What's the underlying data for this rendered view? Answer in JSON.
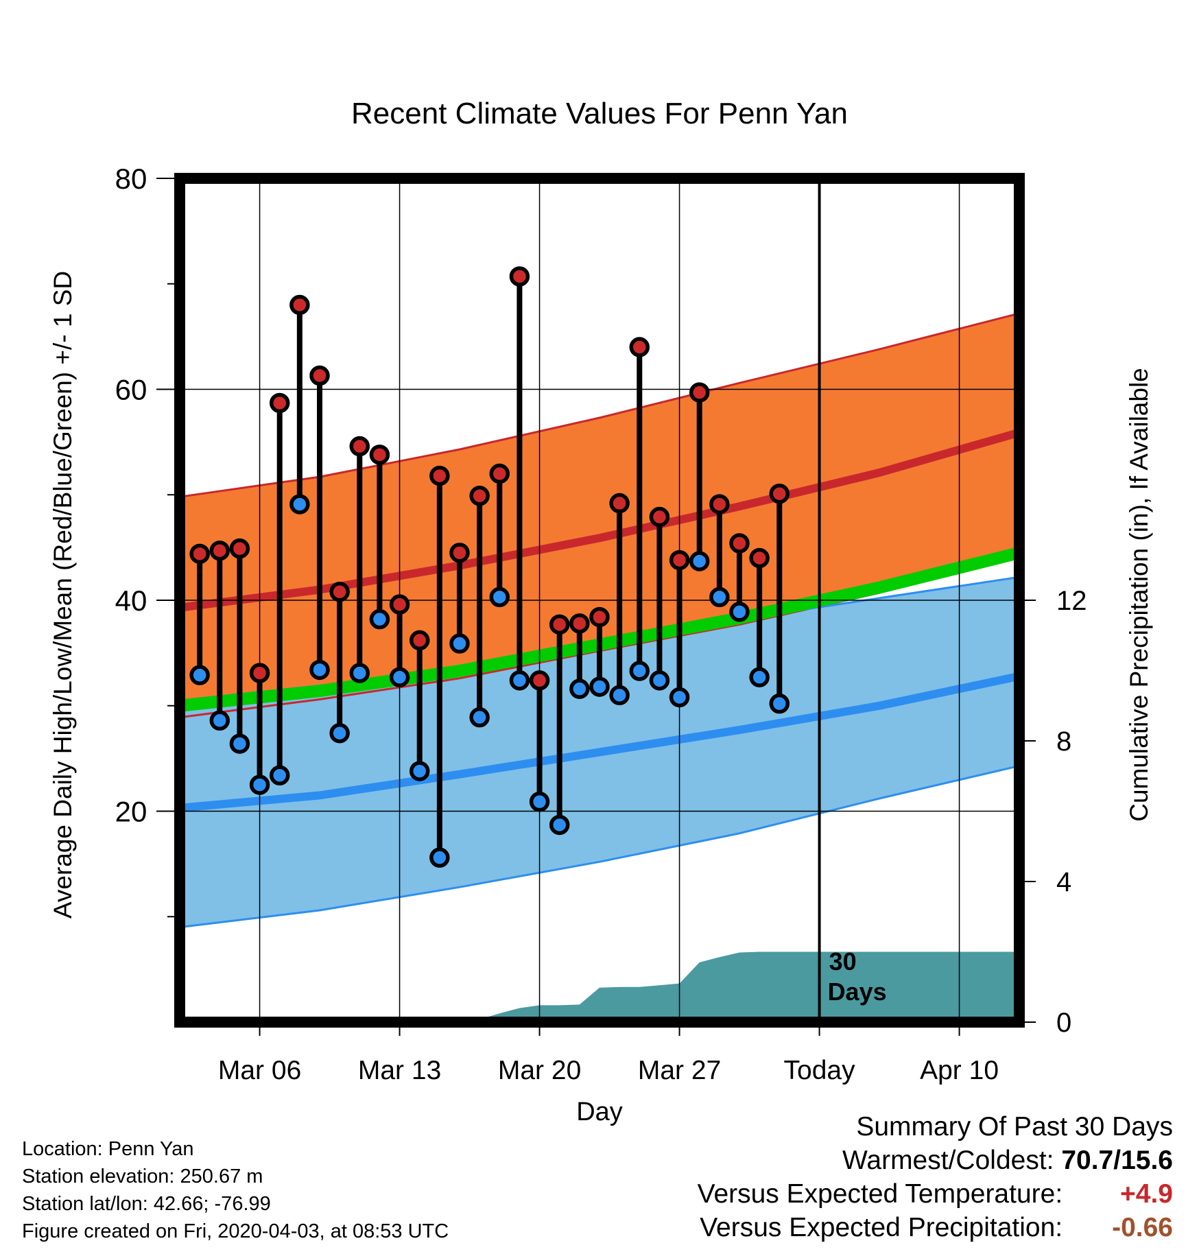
{
  "colors": {
    "high_band": "#f47a32",
    "high_line": "#c8282c",
    "low_band": "#80c0e6",
    "low_line": "#2d8ef0",
    "mean_line": "#00cc00",
    "precip_fill": "#4a9aa0",
    "high_marker": "#cc2a2a",
    "low_marker": "#2d8ef0"
  },
  "chart_data": {
    "type": "line",
    "title": "Recent Climate Values For Penn Yan",
    "xlabel": "Day",
    "ylabel": "Average Daily High/Low/Mean (Red/Blue/Green) +/- 1 SD",
    "y2label": "Cumulative Precipitation (in), If Available",
    "xlim": [
      "2020-03-02",
      "2020-04-13"
    ],
    "ylim": [
      0,
      80
    ],
    "y_ticks": [
      20,
      40,
      60,
      80
    ],
    "y2lim": [
      0,
      24
    ],
    "y2_ticks": [
      0,
      4,
      8,
      12
    ],
    "x_ticks": [
      {
        "date": "2020-03-06",
        "label": "Mar 06"
      },
      {
        "date": "2020-03-13",
        "label": "Mar 13"
      },
      {
        "date": "2020-03-20",
        "label": "Mar 20"
      },
      {
        "date": "2020-03-27",
        "label": "Mar 27"
      },
      {
        "date": "2020-04-03",
        "label": "Today"
      },
      {
        "date": "2020-04-10",
        "label": "Apr 10"
      }
    ],
    "today_marker": {
      "date": "2020-04-03",
      "label_line1": "30",
      "label_line2": "Days"
    },
    "observed": {
      "dates": [
        "2020-03-03",
        "2020-03-04",
        "2020-03-05",
        "2020-03-06",
        "2020-03-07",
        "2020-03-08",
        "2020-03-09",
        "2020-03-10",
        "2020-03-11",
        "2020-03-12",
        "2020-03-13",
        "2020-03-14",
        "2020-03-15",
        "2020-03-16",
        "2020-03-17",
        "2020-03-18",
        "2020-03-19",
        "2020-03-20",
        "2020-03-21",
        "2020-03-22",
        "2020-03-23",
        "2020-03-24",
        "2020-03-25",
        "2020-03-26",
        "2020-03-27",
        "2020-03-28",
        "2020-03-29",
        "2020-03-30",
        "2020-03-31",
        "2020-04-01",
        "2020-04-02"
      ],
      "high": [
        44.4,
        44.7,
        44.9,
        33.1,
        58.7,
        68.0,
        61.3,
        40.8,
        54.6,
        53.8,
        39.6,
        36.2,
        51.8,
        44.5,
        49.9,
        52.0,
        70.7,
        32.4,
        37.7,
        37.8,
        38.4,
        49.2,
        64.0,
        47.9,
        43.8,
        59.7,
        49.1,
        45.4,
        44.0,
        50.1,
        null
      ],
      "low": [
        32.9,
        28.6,
        26.4,
        22.5,
        23.4,
        49.1,
        33.4,
        27.4,
        33.1,
        38.2,
        32.7,
        23.8,
        15.6,
        35.9,
        28.9,
        40.3,
        32.4,
        20.9,
        18.7,
        31.6,
        31.8,
        31.0,
        33.3,
        32.4,
        30.8,
        43.7,
        40.3,
        38.9,
        32.7,
        30.2,
        null
      ]
    },
    "normals": {
      "dates": [
        "2020-03-02",
        "2020-03-09",
        "2020-03-16",
        "2020-03-23",
        "2020-03-30",
        "2020-04-06",
        "2020-04-13"
      ],
      "high_mean": [
        39.3,
        41.0,
        43.3,
        45.9,
        48.9,
        52.1,
        55.9
      ],
      "high_plus_sd": [
        49.8,
        51.7,
        54.3,
        57.3,
        60.6,
        63.8,
        67.2
      ],
      "high_minus_sd": [
        28.9,
        30.6,
        32.6,
        35.2,
        37.7,
        40.7,
        44.6
      ],
      "low_mean": [
        20.3,
        21.5,
        23.5,
        25.6,
        27.7,
        30.0,
        32.8
      ],
      "low_plus_sd": [
        30.5,
        31.9,
        33.6,
        36.0,
        38.2,
        40.2,
        42.2
      ],
      "low_minus_sd": [
        9.0,
        10.6,
        12.8,
        15.2,
        17.9,
        21.2,
        24.3
      ],
      "mean": [
        30.0,
        31.4,
        33.3,
        35.8,
        38.3,
        41.2,
        44.5
      ]
    },
    "precip_cumulative": {
      "dates": [
        "2020-03-02",
        "2020-03-11",
        "2020-03-12",
        "2020-03-13",
        "2020-03-14",
        "2020-03-15",
        "2020-03-16",
        "2020-03-17",
        "2020-03-18",
        "2020-03-19",
        "2020-03-20",
        "2020-03-21",
        "2020-03-22",
        "2020-03-23",
        "2020-03-24",
        "2020-03-25",
        "2020-03-26",
        "2020-03-27",
        "2020-03-28",
        "2020-03-29",
        "2020-03-30",
        "2020-03-31",
        "2020-04-01",
        "2020-04-02",
        "2020-04-03",
        "2020-04-13"
      ],
      "values": [
        0,
        0,
        0.05,
        0.08,
        0.08,
        0.08,
        0.08,
        0.08,
        0.25,
        0.4,
        0.48,
        0.48,
        0.5,
        0.98,
        1.0,
        1.0,
        1.05,
        1.1,
        1.7,
        1.85,
        1.98,
        2.0,
        2.0,
        2.0,
        2.0,
        2.0
      ]
    }
  },
  "footer": {
    "location": "Location: Penn Yan",
    "elevation": "Station elevation: 250.67 m",
    "latlon": "Station lat/lon: 42.66; -76.99",
    "created": "Figure created on Fri, 2020-04-03, at 08:53 UTC"
  },
  "summary": {
    "title": "Summary Of Past 30 Days",
    "warmest_label": "Warmest/Coldest:",
    "warmest_value": "70.7/15.6",
    "temp_label": "Versus Expected Temperature:",
    "temp_value": "+4.9",
    "precip_label": "Versus Expected Precipitation:",
    "precip_value": "-0.66"
  }
}
